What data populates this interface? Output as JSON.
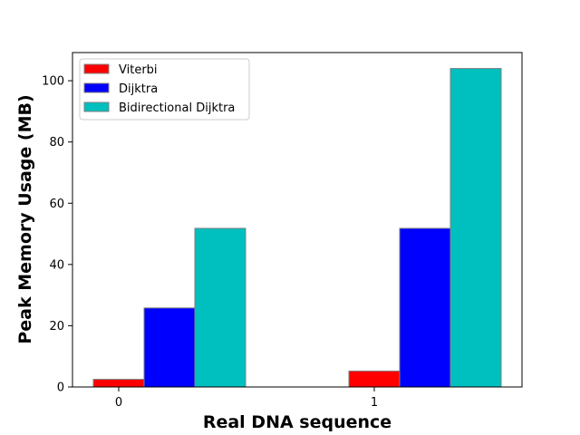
{
  "chart_data": {
    "type": "bar",
    "title": "",
    "xlabel": "Real DNA sequence",
    "ylabel": "Peak Memory Usage (MB)",
    "categories": [
      "0",
      "1"
    ],
    "series": [
      {
        "name": "Viterbi",
        "values": [
          2.5,
          5.2
        ],
        "color": "#ff0000"
      },
      {
        "name": "Dijktra",
        "values": [
          25.8,
          51.8
        ],
        "color": "#0000ff"
      },
      {
        "name": "Bidirectional Dijktra",
        "values": [
          51.8,
          104.0
        ],
        "color": "#00bfbf"
      }
    ],
    "ylim": [
      0,
      109.2
    ],
    "yticks": [
      0,
      20,
      40,
      60,
      80,
      100
    ],
    "legend_position": "top-left",
    "grid": false,
    "bar_edge_color": "#808080"
  }
}
